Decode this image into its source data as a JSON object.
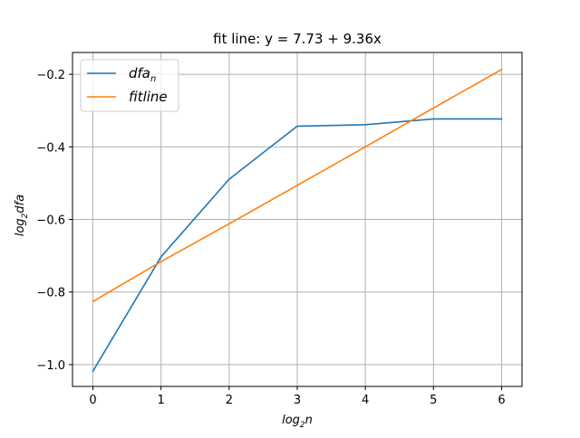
{
  "chart_data": {
    "type": "line",
    "title": "fit line: y = 7.73 + 9.36x",
    "xlabel": {
      "base": "log",
      "sub": "2",
      "rest": "n"
    },
    "ylabel": {
      "base": "log",
      "sub": "2",
      "rest": "dfa"
    },
    "xlim": [
      -0.3,
      6.3
    ],
    "ylim": [
      -1.06,
      -0.14
    ],
    "xticks": [
      0,
      1,
      2,
      3,
      4,
      5,
      6
    ],
    "xtick_labels": [
      "0",
      "1",
      "2",
      "3",
      "4",
      "5",
      "6"
    ],
    "yticks": [
      -1.0,
      -0.8,
      -0.6,
      -0.4,
      -0.2
    ],
    "ytick_labels": [
      "−1.0",
      "−0.8",
      "−0.6",
      "−0.4",
      "−0.2"
    ],
    "grid": true,
    "legend_position": "top-left",
    "x": [
      0,
      1,
      2,
      3,
      4,
      5,
      6
    ],
    "series": [
      {
        "name": {
          "base": "dfa",
          "sub": "n"
        },
        "color": "#1f77b4",
        "values": [
          -1.018,
          -0.703,
          -0.489,
          -0.343,
          -0.339,
          -0.323,
          -0.323
        ]
      },
      {
        "name": {
          "base": "fitline",
          "sub": ""
        },
        "color": "#ff7f0e",
        "values": [
          -0.826,
          -0.716,
          -0.612,
          -0.506,
          -0.4,
          -0.293,
          -0.187
        ]
      }
    ]
  }
}
